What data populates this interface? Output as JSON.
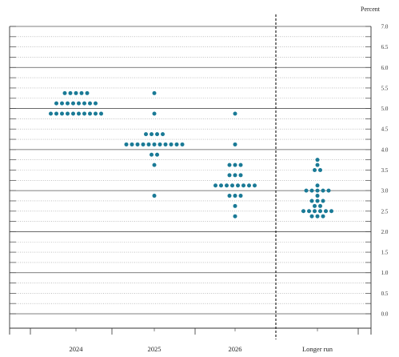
{
  "chart_data": {
    "type": "scatter",
    "subtype": "dot-plot",
    "unit_label": "Percent",
    "ylim": [
      0,
      7.0
    ],
    "y_ticks": [
      "0.0",
      "0.5",
      "1.0",
      "1.5",
      "2.0",
      "2.5",
      "3.0",
      "3.5",
      "4.0",
      "4.5",
      "5.0",
      "5.5",
      "6.0",
      "6.5",
      "7.0"
    ],
    "categories": [
      "2024",
      "2025",
      "2026",
      "Longer run"
    ],
    "grid": true,
    "dot_color": "#1a7a96",
    "groups": [
      {
        "category": "2024",
        "rows": [
          {
            "y": 5.375,
            "count": 5
          },
          {
            "y": 5.125,
            "count": 8
          },
          {
            "y": 4.875,
            "count": 10
          }
        ]
      },
      {
        "category": "2025",
        "rows": [
          {
            "y": 5.375,
            "count": 1
          },
          {
            "y": 4.875,
            "count": 1
          },
          {
            "y": 4.375,
            "count": 4
          },
          {
            "y": 4.125,
            "count": 11
          },
          {
            "y": 3.875,
            "count": 2
          },
          {
            "y": 3.625,
            "count": 1
          },
          {
            "y": 2.875,
            "count": 1
          }
        ]
      },
      {
        "category": "2026",
        "rows": [
          {
            "y": 4.875,
            "count": 1
          },
          {
            "y": 4.125,
            "count": 1
          },
          {
            "y": 3.625,
            "count": 3
          },
          {
            "y": 3.375,
            "count": 3
          },
          {
            "y": 3.125,
            "count": 8
          },
          {
            "y": 2.875,
            "count": 3
          },
          {
            "y": 2.625,
            "count": 1
          },
          {
            "y": 2.375,
            "count": 1
          }
        ]
      },
      {
        "category": "Longer run",
        "rows": [
          {
            "y": 3.75,
            "count": 1
          },
          {
            "y": 3.625,
            "count": 1
          },
          {
            "y": 3.5,
            "count": 2
          },
          {
            "y": 3.125,
            "count": 1
          },
          {
            "y": 3.0,
            "count": 5
          },
          {
            "y": 2.875,
            "count": 1
          },
          {
            "y": 2.75,
            "count": 3
          },
          {
            "y": 2.625,
            "count": 2
          },
          {
            "y": 2.5,
            "count": 6
          },
          {
            "y": 2.375,
            "count": 3
          }
        ]
      }
    ]
  }
}
